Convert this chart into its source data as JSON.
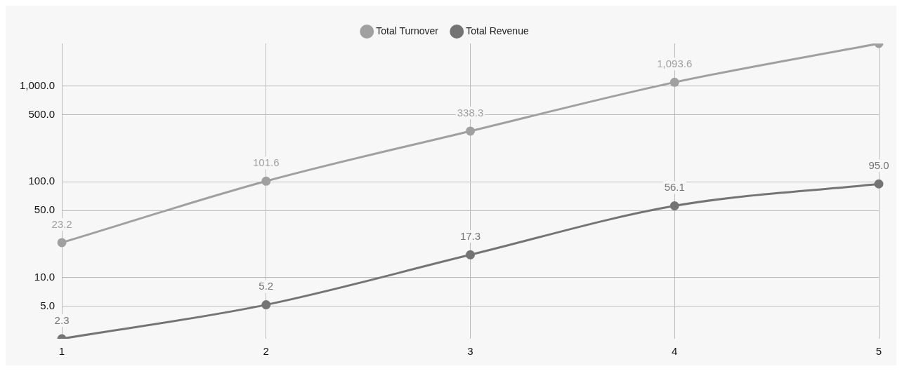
{
  "chart_data": {
    "type": "line",
    "categories": [
      "1",
      "2",
      "3",
      "4",
      "5"
    ],
    "series": [
      {
        "name": "Total Turnover",
        "color": "#a0a0a0",
        "values": [
          23.2,
          101.6,
          338.3,
          1093.6,
          2780
        ],
        "value_labels": [
          "23.2",
          "101.6",
          "338.3",
          "1,093.6",
          null
        ]
      },
      {
        "name": "Total Revenue",
        "color": "#747474",
        "values": [
          2.3,
          5.2,
          17.3,
          56.1,
          95.0
        ],
        "value_labels": [
          "2.3",
          "5.2",
          "17.3",
          "56.1",
          "95.0"
        ]
      }
    ],
    "log": "y",
    "ylim": [
      2.3,
      2780
    ],
    "yticks": [
      {
        "value": 5,
        "label": "5.0"
      },
      {
        "value": 10,
        "label": "10.0"
      },
      {
        "value": 50,
        "label": "50.0"
      },
      {
        "value": 100,
        "label": "100.0"
      },
      {
        "value": 500,
        "label": "500.0"
      },
      {
        "value": 1000,
        "label": "1,000.0"
      }
    ],
    "grid": true,
    "legend": "top",
    "marker": "circle",
    "line_style": "solid"
  }
}
